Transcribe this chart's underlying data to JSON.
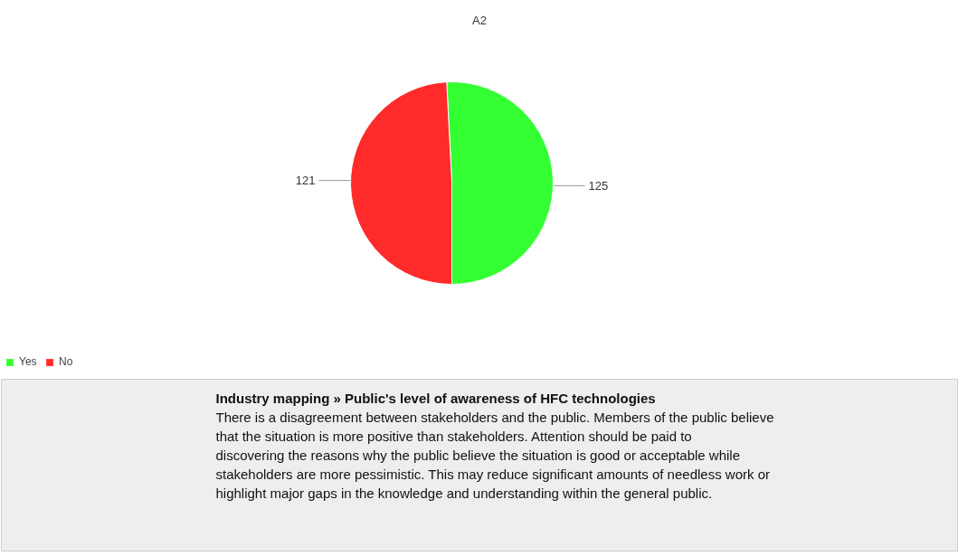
{
  "chart_data": {
    "type": "pie",
    "title": "A2",
    "categories": [
      "Yes",
      "No"
    ],
    "values": [
      125,
      121
    ],
    "colors": [
      "#33ff33",
      "#ff2a2a"
    ],
    "data_labels": true,
    "legend": "bottom left",
    "annotations": [
      "Industry mapping » Public's level of awareness of HFC technologies",
      "There is a disagreement between stakeholders and the public. Members of the public believe that the situation is more positive than stakeholders. Attention should be paid to discovering the reasons why the public believe the situation is good or acceptable while stakeholders are more pessimistic. This may reduce significant amounts of needless work or highlight major gaps in the knowledge and understanding within the general public."
    ]
  }
}
